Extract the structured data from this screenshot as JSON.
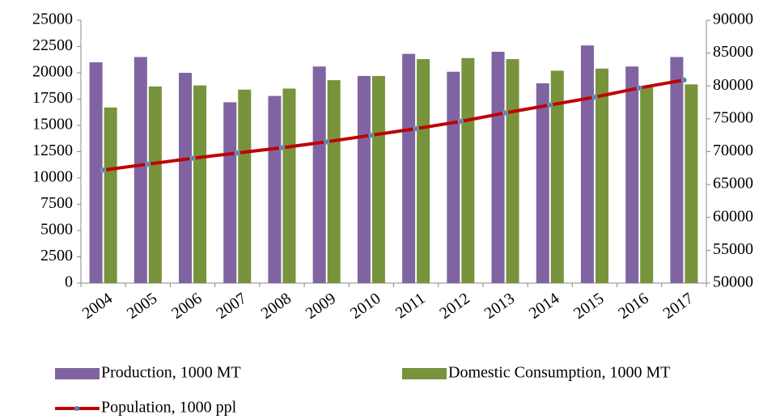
{
  "chart_data": {
    "type": "bar",
    "categories": [
      "2004",
      "2005",
      "2006",
      "2007",
      "2008",
      "2009",
      "2010",
      "2011",
      "2012",
      "2013",
      "2014",
      "2015",
      "2016",
      "2017"
    ],
    "series": [
      {
        "name": "Production, 1000 MT",
        "color": "#8064a2",
        "values": [
          21000,
          21500,
          20000,
          17200,
          17800,
          20600,
          19700,
          21800,
          20100,
          22000,
          19000,
          22600,
          20600,
          21500
        ]
      },
      {
        "name": "Domestic Consumption, 1000 MT",
        "color": "#77933c",
        "values": [
          16700,
          18700,
          18800,
          18400,
          18500,
          19300,
          19700,
          21300,
          21400,
          21300,
          20200,
          20400,
          18700,
          18900
        ]
      },
      {
        "name": "Population, 1000 ppl",
        "type": "line",
        "axis": "y2",
        "color": "#c00000",
        "values": [
          67200,
          68100,
          69000,
          69800,
          70600,
          71500,
          72500,
          73500,
          74600,
          75900,
          77100,
          78300,
          79700,
          80900
        ]
      }
    ],
    "ylim": [
      0,
      25000
    ],
    "yticks": [
      0,
      2500,
      5000,
      7500,
      10000,
      12500,
      15000,
      17500,
      20000,
      22500,
      25000
    ],
    "y2lim": [
      50000,
      90000
    ],
    "y2ticks": [
      50000,
      55000,
      60000,
      65000,
      70000,
      75000,
      80000,
      85000,
      90000
    ],
    "legend": "bottom"
  }
}
